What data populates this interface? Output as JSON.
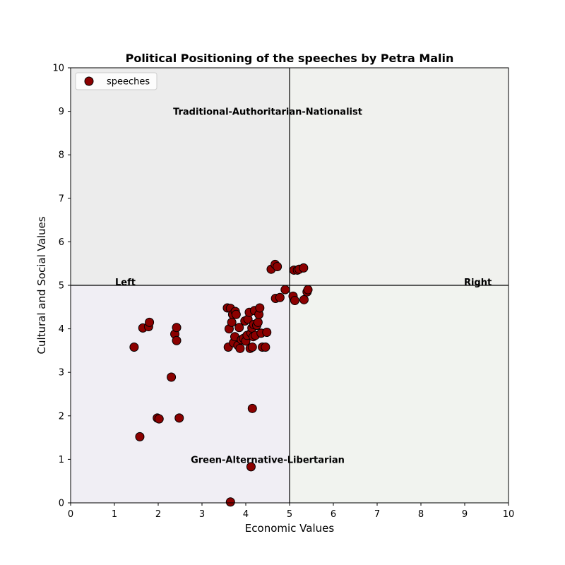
{
  "chart_data": {
    "type": "scatter",
    "title": "Political Positioning of the speeches by Petra Malin",
    "xlabel": "Economic Values",
    "ylabel": "Cultural and Social Values",
    "xlim": [
      0,
      10
    ],
    "ylim": [
      0,
      10
    ],
    "xticks": [
      "0",
      "1",
      "2",
      "3",
      "4",
      "5",
      "6",
      "7",
      "8",
      "9",
      "10"
    ],
    "yticks": [
      "0",
      "1",
      "2",
      "3",
      "4",
      "5",
      "6",
      "7",
      "8",
      "9",
      "10"
    ],
    "grid": false,
    "legend": {
      "position": "top-left",
      "entries": [
        "speeches"
      ]
    },
    "quadrant_colors": {
      "top_left": "#ececec",
      "top_right": "#f0f1ee",
      "bottom_left": "#f0eef4",
      "bottom_right": "#f1f3ef"
    },
    "quadrant_labels": {
      "top": "Traditional-Authoritarian-Nationalist",
      "bottom": "Green-Alternative-Libertarian",
      "left": "Left",
      "right": "Right"
    },
    "series": [
      {
        "name": "speeches",
        "color": "#8b0000",
        "points": [
          [
            1.45,
            3.58
          ],
          [
            1.58,
            1.52
          ],
          [
            1.65,
            4.02
          ],
          [
            1.78,
            4.05
          ],
          [
            1.8,
            4.15
          ],
          [
            1.98,
            1.95
          ],
          [
            2.02,
            1.93
          ],
          [
            2.3,
            2.89
          ],
          [
            2.38,
            3.88
          ],
          [
            2.42,
            4.03
          ],
          [
            2.42,
            3.73
          ],
          [
            2.48,
            1.95
          ],
          [
            3.58,
            4.48
          ],
          [
            3.6,
            3.58
          ],
          [
            3.62,
            4.0
          ],
          [
            3.65,
            4.47
          ],
          [
            3.68,
            4.15
          ],
          [
            3.7,
            4.33
          ],
          [
            3.72,
            3.68
          ],
          [
            3.75,
            3.82
          ],
          [
            3.76,
            4.4
          ],
          [
            3.78,
            4.33
          ],
          [
            3.82,
            3.62
          ],
          [
            3.85,
            4.03
          ],
          [
            3.87,
            3.55
          ],
          [
            3.9,
            3.75
          ],
          [
            3.95,
            3.78
          ],
          [
            3.98,
            4.18
          ],
          [
            4.0,
            3.72
          ],
          [
            4.03,
            3.85
          ],
          [
            4.05,
            4.22
          ],
          [
            4.08,
            4.38
          ],
          [
            4.1,
            3.55
          ],
          [
            4.12,
            3.9
          ],
          [
            4.14,
            4.02
          ],
          [
            4.15,
            3.58
          ],
          [
            4.17,
            3.82
          ],
          [
            4.18,
            4.1
          ],
          [
            4.2,
            4.42
          ],
          [
            4.22,
            3.85
          ],
          [
            4.25,
            4.08
          ],
          [
            4.28,
            4.15
          ],
          [
            4.3,
            4.33
          ],
          [
            4.32,
            4.48
          ],
          [
            4.35,
            3.9
          ],
          [
            4.38,
            3.58
          ],
          [
            4.45,
            3.58
          ],
          [
            4.48,
            3.92
          ],
          [
            4.15,
            2.17
          ],
          [
            4.12,
            0.83
          ],
          [
            3.65,
            0.02
          ],
          [
            4.58,
            5.37
          ],
          [
            4.67,
            5.48
          ],
          [
            4.72,
            5.43
          ],
          [
            4.68,
            4.7
          ],
          [
            4.78,
            4.72
          ],
          [
            4.9,
            4.9
          ],
          [
            5.08,
            4.75
          ],
          [
            5.12,
            4.65
          ],
          [
            5.1,
            5.35
          ],
          [
            5.18,
            5.35
          ],
          [
            5.22,
            5.37
          ],
          [
            5.32,
            5.4
          ],
          [
            5.33,
            4.67
          ],
          [
            5.4,
            4.85
          ],
          [
            5.42,
            4.9
          ]
        ]
      }
    ]
  }
}
